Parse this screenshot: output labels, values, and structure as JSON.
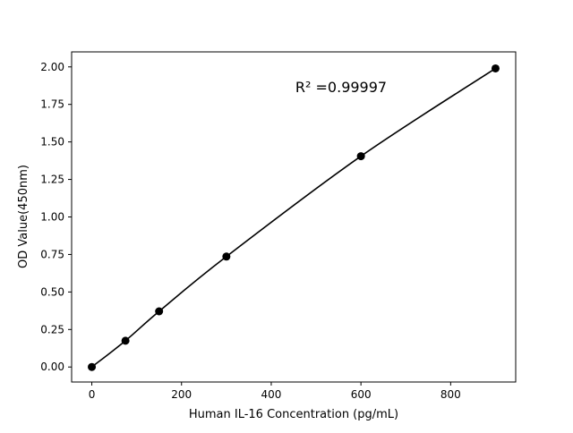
{
  "chart_data": {
    "type": "line",
    "title": "",
    "xlabel": "Human IL-16 Concentration (pg/mL)",
    "ylabel": "OD Value(450nm)",
    "xlim": [
      -45,
      945
    ],
    "ylim": [
      -0.1,
      2.1
    ],
    "xticks": [
      0,
      200,
      400,
      600,
      800
    ],
    "xtick_labels": [
      "0",
      "200",
      "400",
      "600",
      "800"
    ],
    "yticks": [
      0,
      0.25,
      0.5,
      0.75,
      1.0,
      1.25,
      1.5,
      1.75,
      2.0
    ],
    "ytick_labels": [
      "0.00",
      "0.25",
      "0.50",
      "0.75",
      "1.00",
      "1.25",
      "1.50",
      "1.75",
      "2.00"
    ],
    "grid": false,
    "series": [
      {
        "x": [
          0,
          75,
          150,
          300,
          600,
          900
        ],
        "y": [
          0.0,
          0.175,
          0.371,
          0.736,
          1.405,
          1.99
        ],
        "color": "#000000",
        "marker": "circle"
      }
    ],
    "annotation": "R² =0.99997"
  }
}
